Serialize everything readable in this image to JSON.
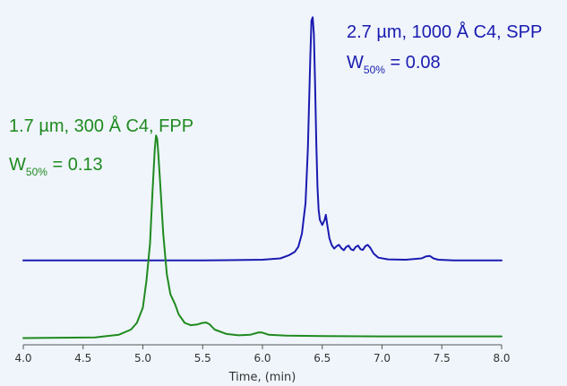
{
  "colors": {
    "background": "#eff5fb",
    "series_blue": "#1a1ab0",
    "series_green": "#1f8a1f",
    "axis": "#555555"
  },
  "annotations": {
    "spp": {
      "line1": "2.7 µm, 1000 Å C4, SPP",
      "w_main": "W",
      "w_sub": "50%",
      "w_value": " = 0.08"
    },
    "fpp": {
      "line1": "1.7 µm, 300 Å C4, FPP",
      "w_main": "W",
      "w_sub": "50%",
      "w_value": " = 0.13"
    }
  },
  "chart_data": {
    "type": "line",
    "xlabel": "Time, (min)",
    "ylabel": "",
    "xlim": [
      4.0,
      8.0
    ],
    "ylim": [
      0,
      1
    ],
    "grid": false,
    "legend": "none",
    "xticks": [
      4.0,
      4.5,
      5.0,
      5.5,
      6.0,
      6.5,
      7.0,
      7.5,
      8.0
    ],
    "xtick_labels": [
      "4.0",
      "4.5",
      "5.0",
      "5.5",
      "6.0",
      "6.5",
      "7.0",
      "7.5",
      "8.0"
    ],
    "series": [
      {
        "color": "#1a1ab0",
        "baseline": 0.25,
        "x": [
          4.0,
          5.5,
          6.0,
          6.15,
          6.22,
          6.27,
          6.3,
          6.33,
          6.36,
          6.38,
          6.4,
          6.41,
          6.42,
          6.43,
          6.44,
          6.45,
          6.46,
          6.47,
          6.48,
          6.5,
          6.52,
          6.53,
          6.54,
          6.56,
          6.58,
          6.6,
          6.62,
          6.64,
          6.66,
          6.68,
          6.7,
          6.72,
          6.74,
          6.76,
          6.78,
          6.8,
          6.82,
          6.84,
          6.86,
          6.88,
          6.9,
          6.93,
          6.97,
          7.05,
          7.2,
          7.33,
          7.37,
          7.4,
          7.43,
          7.47,
          7.6,
          8.0
        ],
        "y": [
          0.25,
          0.25,
          0.252,
          0.256,
          0.265,
          0.275,
          0.29,
          0.33,
          0.42,
          0.58,
          0.85,
          0.96,
          0.97,
          0.92,
          0.78,
          0.6,
          0.47,
          0.4,
          0.37,
          0.355,
          0.37,
          0.385,
          0.36,
          0.315,
          0.295,
          0.285,
          0.292,
          0.296,
          0.286,
          0.28,
          0.29,
          0.294,
          0.283,
          0.28,
          0.29,
          0.294,
          0.283,
          0.281,
          0.292,
          0.296,
          0.288,
          0.27,
          0.258,
          0.253,
          0.252,
          0.256,
          0.262,
          0.263,
          0.256,
          0.252,
          0.25,
          0.25
        ]
      },
      {
        "color": "#1f8a1f",
        "baseline": 0.03,
        "x": [
          4.0,
          4.6,
          4.8,
          4.9,
          4.95,
          5.0,
          5.03,
          5.06,
          5.08,
          5.1,
          5.11,
          5.12,
          5.13,
          5.15,
          5.17,
          5.2,
          5.23,
          5.27,
          5.3,
          5.35,
          5.4,
          5.45,
          5.5,
          5.53,
          5.56,
          5.6,
          5.7,
          5.8,
          5.9,
          5.97,
          6.0,
          6.05,
          6.2,
          6.5,
          7.0,
          8.0
        ],
        "y": [
          0.02,
          0.022,
          0.03,
          0.045,
          0.065,
          0.11,
          0.19,
          0.3,
          0.45,
          0.58,
          0.62,
          0.61,
          0.56,
          0.45,
          0.33,
          0.21,
          0.15,
          0.12,
          0.09,
          0.065,
          0.058,
          0.06,
          0.065,
          0.066,
          0.06,
          0.045,
          0.032,
          0.028,
          0.03,
          0.037,
          0.036,
          0.03,
          0.027,
          0.026,
          0.025,
          0.025
        ]
      }
    ]
  }
}
